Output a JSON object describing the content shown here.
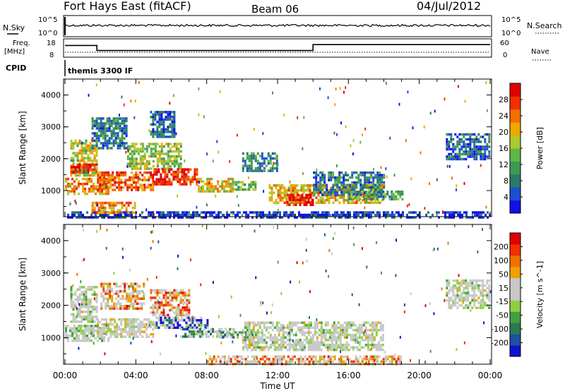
{
  "header": {
    "radar": "Fort Hays East (fitACF)",
    "beam": "Beam 06",
    "date": "04/Jul/2012"
  },
  "aux_panels": {
    "nsky_label": "N.Sky",
    "nsearch_label": "N.Search",
    "noise_ticks": [
      "10^5",
      "10^0"
    ],
    "freq_label_top": "Freq.",
    "freq_label_unit": "[MHz]",
    "freq_ticks": [
      "18",
      "8"
    ],
    "nave_ticks": [
      "60",
      "0"
    ],
    "nave_label": "Nave",
    "cpid_label": "CPID",
    "cpid_text": "themis 3300 IF",
    "freq_steps": [
      [
        0.0,
        14.5
      ],
      [
        1.8,
        14.5
      ],
      [
        1.8,
        11.5
      ],
      [
        14.0,
        11.5
      ],
      [
        14.0,
        15.0
      ],
      [
        24.0,
        15.0
      ]
    ]
  },
  "chart_data": [
    {
      "type": "heatmap",
      "name": "power",
      "xlabel": "Time UT",
      "ylabel": "Slant Range [km]",
      "xlim": [
        0,
        24
      ],
      "ylim": [
        180,
        4500
      ],
      "y_ticks": [
        "1000",
        "2000",
        "3000",
        "4000"
      ],
      "x_ticks": [
        "00:00",
        "04:00",
        "08:00",
        "12:00",
        "16:00",
        "20:00",
        "00:00"
      ],
      "colorbar": {
        "label": "Power [dB]",
        "ticks": [
          "4",
          "8",
          "12",
          "16",
          "20",
          "24",
          "28"
        ],
        "colors": [
          "#1010e8",
          "#1c4fd0",
          "#2a7a6a",
          "#3e9a52",
          "#60b844",
          "#b0c830",
          "#f0a800",
          "#f07000",
          "#f03000",
          "#e00000"
        ]
      },
      "echo_regions": [
        {
          "t0": 0.3,
          "t1": 1.8,
          "r0": 1500,
          "r1": 2600,
          "level": 0.55
        },
        {
          "t0": 0.3,
          "t1": 1.8,
          "r0": 1600,
          "r1": 1850,
          "level": 0.9
        },
        {
          "t0": 0.0,
          "t1": 2.5,
          "r0": 900,
          "r1": 1400,
          "level": 0.7
        },
        {
          "t0": 1.8,
          "t1": 5.0,
          "r0": 1050,
          "r1": 1600,
          "level": 0.8
        },
        {
          "t0": 3.5,
          "t1": 6.5,
          "r0": 1700,
          "r1": 2500,
          "level": 0.5
        },
        {
          "t0": 5.0,
          "t1": 7.5,
          "r0": 1200,
          "r1": 1700,
          "level": 0.9
        },
        {
          "t0": 7.5,
          "t1": 9.5,
          "r0": 1000,
          "r1": 1400,
          "level": 0.6
        },
        {
          "t0": 9.5,
          "t1": 10.8,
          "r0": 1050,
          "r1": 1300,
          "level": 0.45
        },
        {
          "t0": 1.5,
          "t1": 3.5,
          "r0": 2300,
          "r1": 3300,
          "level": 0.25
        },
        {
          "t0": 4.8,
          "t1": 6.2,
          "r0": 2700,
          "r1": 3500,
          "level": 0.2
        },
        {
          "t0": 10.0,
          "t1": 12.0,
          "r0": 1600,
          "r1": 2200,
          "level": 0.3
        },
        {
          "t0": 11.5,
          "t1": 18.0,
          "r0": 600,
          "r1": 1200,
          "level": 0.65
        },
        {
          "t0": 12.5,
          "t1": 14.0,
          "r0": 550,
          "r1": 900,
          "level": 0.95
        },
        {
          "t0": 14.0,
          "t1": 18.0,
          "r0": 900,
          "r1": 1600,
          "level": 0.25
        },
        {
          "t0": 16.0,
          "t1": 19.0,
          "r0": 700,
          "r1": 1000,
          "level": 0.35
        },
        {
          "t0": 21.5,
          "t1": 24.0,
          "r0": 2000,
          "r1": 2800,
          "level": 0.2
        },
        {
          "t0": 0.0,
          "t1": 24.0,
          "r0": 180,
          "r1": 350,
          "level": 0.1
        },
        {
          "t0": 1.5,
          "t1": 4.0,
          "r0": 300,
          "r1": 650,
          "level": 0.7
        }
      ]
    },
    {
      "type": "heatmap",
      "name": "velocity",
      "xlabel": "Time UT",
      "ylabel": "Slant Range [km]",
      "xlim": [
        0,
        24
      ],
      "ylim": [
        180,
        4500
      ],
      "y_ticks": [
        "1000",
        "2000",
        "3000",
        "4000"
      ],
      "x_ticks": [
        "00:00",
        "04:00",
        "08:00",
        "12:00",
        "16:00",
        "20:00",
        "00:00"
      ],
      "colorbar": {
        "label": "Velocity [m s^-1]",
        "ticks": [
          "200",
          "100",
          "50",
          "15",
          "-15",
          "-50",
          "-100",
          "-200"
        ],
        "colors": [
          "#1010d0",
          "#2050a0",
          "#2a7a50",
          "#40a040",
          "#8cd040",
          "#c8c8c8",
          "#c8c8c8",
          "#f0a000",
          "#f07000",
          "#f03000",
          "#e00000"
        ]
      },
      "echo_regions": [
        {
          "t0": 0.3,
          "t1": 1.8,
          "r0": 1500,
          "r1": 2600,
          "level": 0.5
        },
        {
          "t0": 0.0,
          "t1": 2.5,
          "r0": 900,
          "r1": 1400,
          "level": 0.45
        },
        {
          "t0": 1.8,
          "t1": 5.0,
          "r0": 1050,
          "r1": 1600,
          "level": 0.55
        },
        {
          "t0": 2.0,
          "t1": 4.5,
          "r0": 1900,
          "r1": 2700,
          "level": 0.75
        },
        {
          "t0": 4.8,
          "t1": 7.0,
          "r0": 1700,
          "r1": 2500,
          "level": 0.8
        },
        {
          "t0": 5.0,
          "t1": 8.0,
          "r0": 1300,
          "r1": 1650,
          "level": 0.05
        },
        {
          "t0": 6.5,
          "t1": 9.5,
          "r0": 1000,
          "r1": 1300,
          "level": 0.25
        },
        {
          "t0": 8.5,
          "t1": 10.8,
          "r0": 1000,
          "r1": 1200,
          "level": 0.3
        },
        {
          "t0": 10.0,
          "t1": 18.0,
          "r0": 600,
          "r1": 1500,
          "level": 0.5
        },
        {
          "t0": 8.0,
          "t1": 19.0,
          "r0": 180,
          "r1": 450,
          "level": 0.75
        },
        {
          "t0": 21.5,
          "t1": 24.0,
          "r0": 1900,
          "r1": 2800,
          "level": 0.5
        }
      ]
    }
  ]
}
